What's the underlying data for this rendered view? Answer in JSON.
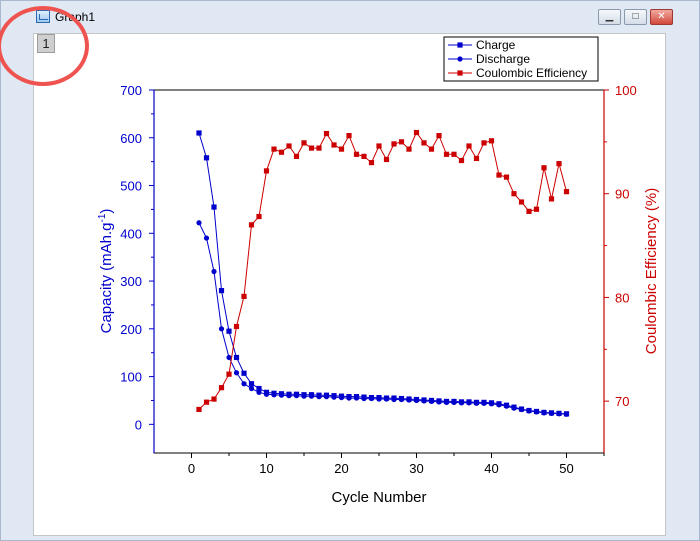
{
  "window": {
    "title": "Graph1",
    "layer_label": "1",
    "controls": {
      "minimize": "▁",
      "maximize": "□",
      "close": "✕"
    }
  },
  "colors": {
    "blue": "#0000cc",
    "red": "#cc0000",
    "highlight": "#ef5350"
  },
  "chart_data": {
    "type": "line",
    "title": "",
    "xlabel": "Cycle Number",
    "ylabel": "Capacity (mAh.g",
    "ylabel_sup": "-1",
    "ylabel_close": ")",
    "y2label": "Coulombic Efficiency (%)",
    "xlim": [
      -5,
      55
    ],
    "ylim": [
      -60,
      700
    ],
    "y2lim": [
      65,
      100
    ],
    "xticks": [
      0,
      10,
      20,
      30,
      40,
      50
    ],
    "xtick_labels": [
      "0",
      "10",
      "20",
      "30",
      "40",
      "50"
    ],
    "yticks": [
      0,
      100,
      200,
      300,
      400,
      500,
      600,
      700
    ],
    "ytick_labels": [
      "0",
      "100",
      "200",
      "300",
      "400",
      "500",
      "600",
      "700"
    ],
    "y2ticks": [
      70,
      80,
      90,
      100
    ],
    "y2tick_labels": [
      "70",
      "80",
      "90",
      "100"
    ],
    "legend_position": "top-right",
    "grid": false,
    "series": [
      {
        "name": "Charge",
        "axis": "left",
        "color": "#0000cc",
        "marker": "square",
        "x": [
          1,
          2,
          3,
          4,
          5,
          6,
          7,
          8,
          9,
          10,
          11,
          12,
          13,
          14,
          15,
          16,
          17,
          18,
          19,
          20,
          21,
          22,
          23,
          24,
          25,
          26,
          27,
          28,
          29,
          30,
          31,
          32,
          33,
          34,
          35,
          36,
          37,
          38,
          39,
          40,
          41,
          42,
          43,
          44,
          45,
          46,
          47,
          48,
          49,
          50
        ],
        "y": [
          610,
          558,
          455,
          280,
          195,
          140,
          107,
          85,
          75,
          67,
          65,
          64,
          63,
          63,
          62,
          62,
          61,
          61,
          60,
          59,
          58,
          58,
          57,
          56,
          56,
          55,
          55,
          54,
          53,
          52,
          51,
          50,
          49,
          48,
          48,
          47,
          47,
          46,
          46,
          45,
          43,
          40,
          36,
          32,
          29,
          27,
          25,
          24,
          23,
          22
        ]
      },
      {
        "name": "Discharge",
        "axis": "left",
        "color": "#0000cc",
        "marker": "circle",
        "x": [
          1,
          2,
          3,
          4,
          5,
          6,
          7,
          8,
          9,
          10,
          11,
          12,
          13,
          14,
          15,
          16,
          17,
          18,
          19,
          20,
          21,
          22,
          23,
          24,
          25,
          26,
          27,
          28,
          29,
          30,
          31,
          32,
          33,
          34,
          35,
          36,
          37,
          38,
          39,
          40,
          41,
          42,
          43,
          44,
          45,
          46,
          47,
          48,
          49,
          50
        ],
        "y": [
          422,
          390,
          320,
          200,
          140,
          108,
          85,
          75,
          67,
          63,
          62,
          61,
          60,
          60,
          59,
          59,
          58,
          58,
          57,
          56,
          55,
          55,
          54,
          54,
          53,
          53,
          52,
          52,
          51,
          50,
          49,
          48,
          47,
          46,
          46,
          45,
          45,
          44,
          44,
          43,
          41,
          38,
          34,
          31,
          28,
          26,
          24,
          23,
          22,
          21
        ]
      },
      {
        "name": "Coulombic Efficiency",
        "axis": "right",
        "color": "#cc0000",
        "marker": "square",
        "x": [
          1,
          2,
          3,
          4,
          5,
          6,
          7,
          8,
          9,
          10,
          11,
          12,
          13,
          14,
          15,
          16,
          17,
          18,
          19,
          20,
          21,
          22,
          23,
          24,
          25,
          26,
          27,
          28,
          29,
          30,
          31,
          32,
          33,
          34,
          35,
          36,
          37,
          38,
          39,
          40,
          41,
          42,
          43,
          44,
          45,
          46,
          47,
          48,
          49,
          50
        ],
        "y": [
          69.2,
          69.9,
          70.2,
          71.3,
          72.6,
          77.2,
          80.1,
          87.0,
          87.8,
          92.2,
          94.3,
          94.0,
          94.6,
          93.6,
          94.9,
          94.4,
          94.4,
          95.8,
          94.7,
          94.3,
          95.6,
          93.8,
          93.6,
          93.0,
          94.6,
          93.3,
          94.8,
          95.0,
          94.3,
          95.9,
          94.9,
          94.3,
          95.6,
          93.8,
          93.8,
          93.2,
          94.6,
          93.4,
          94.9,
          95.1,
          91.8,
          91.6,
          90.0,
          89.2,
          88.3,
          88.5,
          92.5,
          89.5,
          92.9,
          90.2
        ]
      }
    ]
  }
}
